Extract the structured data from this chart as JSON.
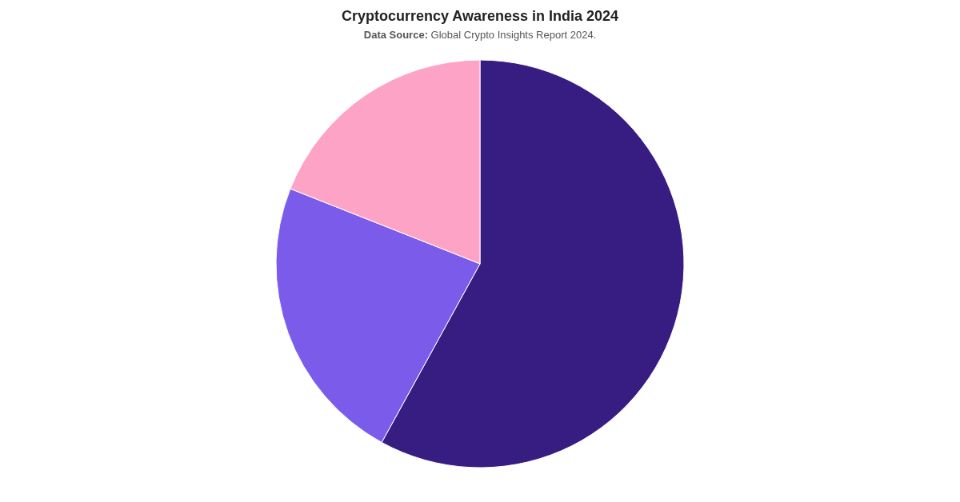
{
  "chart_data": {
    "type": "pie",
    "title": "Cryptocurrency Awareness in India 2024",
    "subtitle": "Data Source: Global Crypto Insights Report 2024.",
    "categories": [
      null,
      null,
      null
    ],
    "values": [
      58,
      23,
      19
    ],
    "colors": [
      "#371c82",
      "#7b5cea",
      "#fda4c6"
    ]
  }
}
